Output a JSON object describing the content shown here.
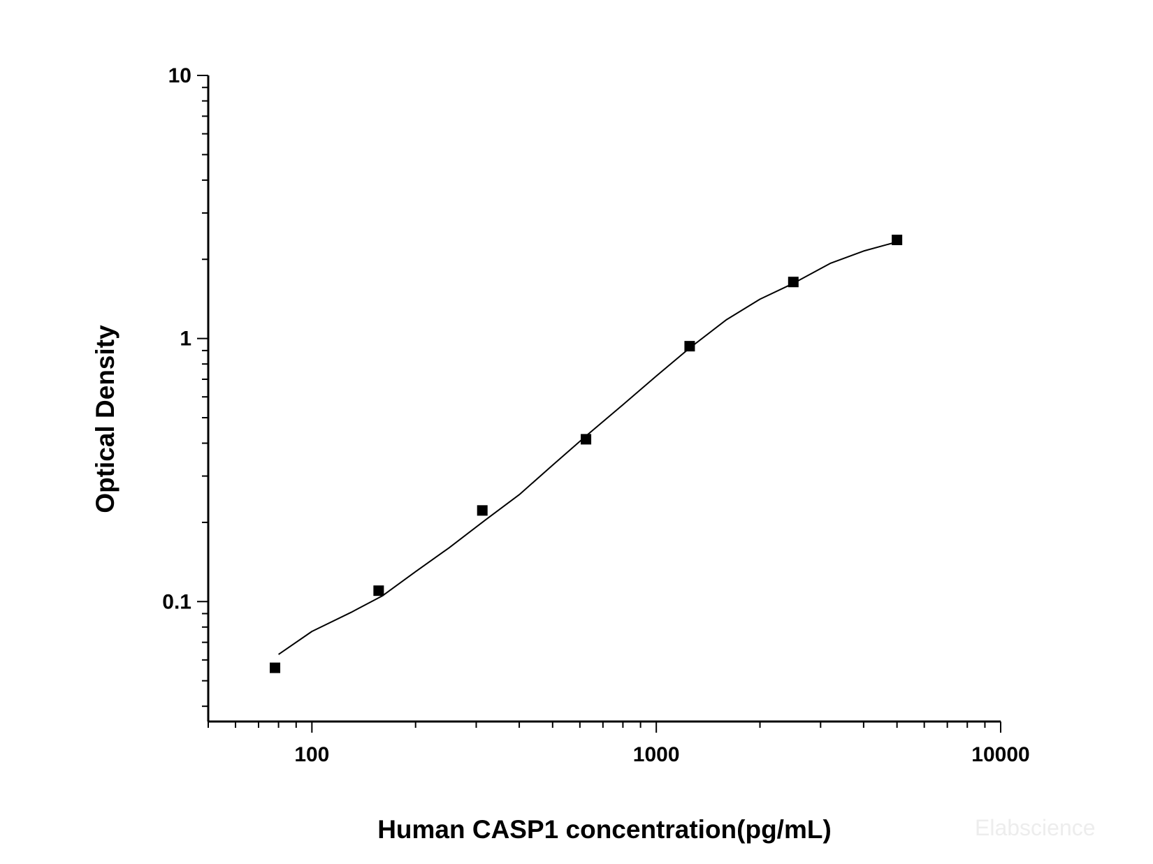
{
  "chart_data": {
    "type": "scatter",
    "xlabel": "Human CASP1 concentration(pg/mL)",
    "ylabel": "Optical Density",
    "x_scale": "log",
    "y_scale": "log",
    "xlim": [
      50,
      10000
    ],
    "ylim": [
      0.035,
      10
    ],
    "x_ticks": [
      {
        "value": 100,
        "label": "100"
      },
      {
        "value": 1000,
        "label": "1000"
      },
      {
        "value": 10000,
        "label": "10000"
      }
    ],
    "y_ticks": [
      {
        "value": 0.1,
        "label": "0.1"
      },
      {
        "value": 1,
        "label": "1"
      },
      {
        "value": 10,
        "label": "10"
      }
    ],
    "grid": false,
    "legend": "none",
    "series": [
      {
        "marker": "square",
        "color": "#000000",
        "x": [
          78.13,
          156.25,
          312.5,
          625,
          1250,
          2500,
          5000
        ],
        "y": [
          0.056,
          0.11,
          0.222,
          0.414,
          0.935,
          1.64,
          2.37
        ]
      }
    ],
    "fit_curve": {
      "color": "#000000",
      "x": [
        80,
        100,
        130,
        160,
        200,
        250,
        320,
        400,
        500,
        630,
        800,
        1000,
        1250,
        1600,
        2000,
        2500,
        3200,
        4000,
        5000
      ],
      "y": [
        0.063,
        0.077,
        0.091,
        0.105,
        0.13,
        0.16,
        0.205,
        0.255,
        0.33,
        0.43,
        0.56,
        0.72,
        0.92,
        1.18,
        1.41,
        1.62,
        1.93,
        2.15,
        2.33
      ]
    }
  },
  "watermark": "Elabscience"
}
